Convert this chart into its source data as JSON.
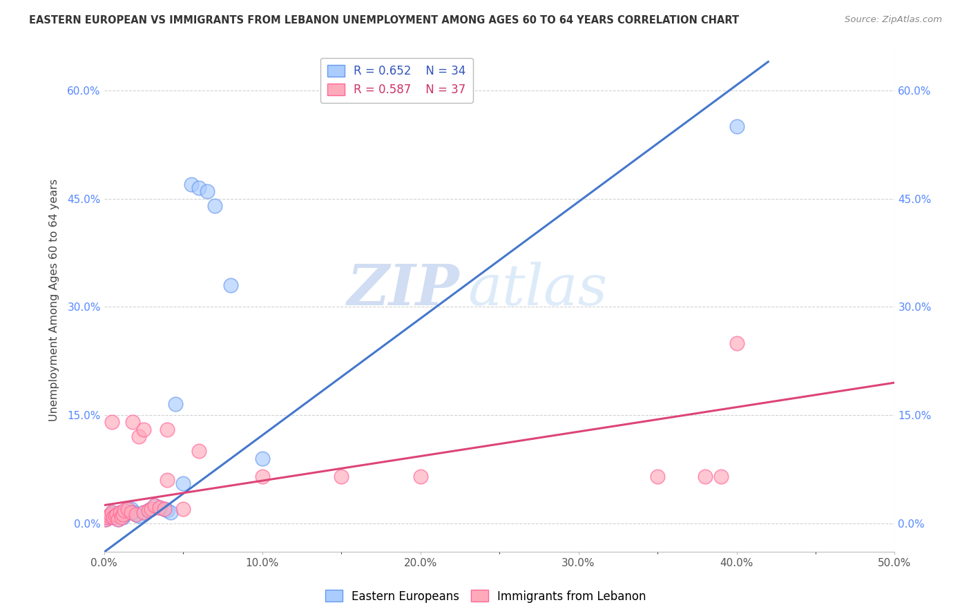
{
  "title": "EASTERN EUROPEAN VS IMMIGRANTS FROM LEBANON UNEMPLOYMENT AMONG AGES 60 TO 64 YEARS CORRELATION CHART",
  "source": "Source: ZipAtlas.com",
  "xlabel_ticks": [
    "0.0%",
    "",
    "10.0%",
    "",
    "20.0%",
    "",
    "30.0%",
    "",
    "40.0%",
    "",
    "50.0%"
  ],
  "xlabel_vals": [
    0.0,
    0.05,
    0.1,
    0.15,
    0.2,
    0.25,
    0.3,
    0.35,
    0.4,
    0.45,
    0.5
  ],
  "ylabel_label": "Unemployment Among Ages 60 to 64 years",
  "legend_blue_r": "R = 0.652",
  "legend_blue_n": "N = 34",
  "legend_pink_r": "R = 0.587",
  "legend_pink_n": "N = 37",
  "watermark_zip": "ZIP",
  "watermark_atlas": "atlas",
  "blue_scatter_x": [
    0.001,
    0.002,
    0.003,
    0.004,
    0.005,
    0.006,
    0.007,
    0.008,
    0.009,
    0.01,
    0.012,
    0.013,
    0.015,
    0.017,
    0.019,
    0.02,
    0.022,
    0.025,
    0.028,
    0.03,
    0.032,
    0.035,
    0.038,
    0.04,
    0.042,
    0.045,
    0.05,
    0.055,
    0.06,
    0.065,
    0.07,
    0.08,
    0.1,
    0.4
  ],
  "blue_scatter_y": [
    0.005,
    0.008,
    0.01,
    0.012,
    0.015,
    0.008,
    0.01,
    0.012,
    0.005,
    0.015,
    0.008,
    0.012,
    0.018,
    0.02,
    0.015,
    0.012,
    0.01,
    0.015,
    0.018,
    0.02,
    0.025,
    0.022,
    0.02,
    0.018,
    0.015,
    0.165,
    0.055,
    0.47,
    0.465,
    0.46,
    0.44,
    0.33,
    0.09,
    0.55
  ],
  "pink_scatter_x": [
    0.001,
    0.002,
    0.003,
    0.004,
    0.005,
    0.006,
    0.007,
    0.008,
    0.009,
    0.01,
    0.011,
    0.012,
    0.013,
    0.015,
    0.017,
    0.018,
    0.02,
    0.022,
    0.025,
    0.028,
    0.03,
    0.032,
    0.035,
    0.038,
    0.04,
    0.05,
    0.06,
    0.1,
    0.15,
    0.2,
    0.35,
    0.38,
    0.39,
    0.4,
    0.005,
    0.025,
    0.04
  ],
  "pink_scatter_y": [
    0.005,
    0.008,
    0.01,
    0.012,
    0.015,
    0.008,
    0.01,
    0.012,
    0.005,
    0.015,
    0.008,
    0.012,
    0.018,
    0.02,
    0.015,
    0.14,
    0.012,
    0.12,
    0.015,
    0.018,
    0.02,
    0.025,
    0.022,
    0.02,
    0.13,
    0.02,
    0.1,
    0.065,
    0.065,
    0.065,
    0.065,
    0.065,
    0.065,
    0.25,
    0.14,
    0.13,
    0.06
  ],
  "xlim": [
    0,
    0.5
  ],
  "ylim": [
    -0.04,
    0.66
  ],
  "blue_line_x": [
    0.0,
    0.42
  ],
  "blue_line_y": [
    -0.04,
    0.64
  ],
  "pink_line_x": [
    0.0,
    0.5
  ],
  "pink_line_y": [
    0.025,
    0.195
  ]
}
